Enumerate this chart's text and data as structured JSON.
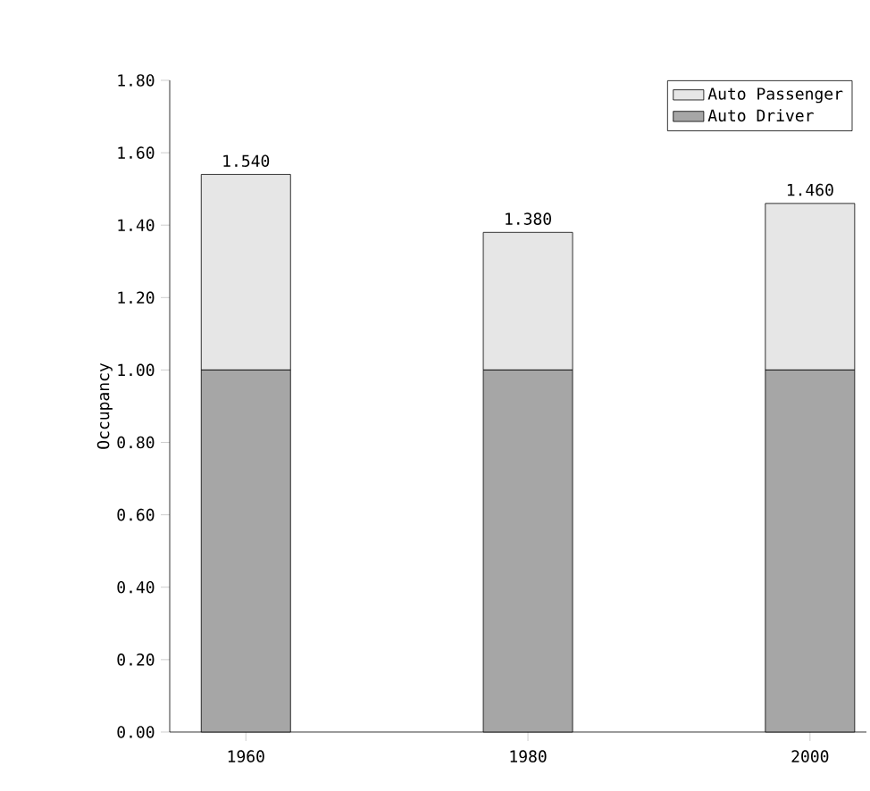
{
  "chart_data": {
    "type": "bar",
    "stacked": true,
    "ylabel": "Occupancy",
    "categories": [
      "1960",
      "1980",
      "2000"
    ],
    "series": [
      {
        "name": "Auto Driver",
        "color": "#a6a6a6",
        "values": [
          1.0,
          1.0,
          1.0
        ]
      },
      {
        "name": "Auto Passenger",
        "color": "#e6e6e6",
        "values": [
          0.54,
          0.38,
          0.46
        ]
      }
    ],
    "totals": [
      "1.540",
      "1.380",
      "1.460"
    ],
    "ylim": [
      0,
      1.8
    ],
    "yticks": [
      {
        "value": 0,
        "label": "0.00"
      },
      {
        "value": 0.2,
        "label": "0.20"
      },
      {
        "value": 0.4,
        "label": "0.40"
      },
      {
        "value": 0.6,
        "label": "0.60"
      },
      {
        "value": 0.8,
        "label": "0.80"
      },
      {
        "value": 1.0,
        "label": "1.00"
      },
      {
        "value": 1.2,
        "label": "1.20"
      },
      {
        "value": 1.4,
        "label": "1.40"
      },
      {
        "value": 1.6,
        "label": "1.60"
      },
      {
        "value": 1.8,
        "label": "1.80"
      }
    ],
    "legend": "top right"
  }
}
